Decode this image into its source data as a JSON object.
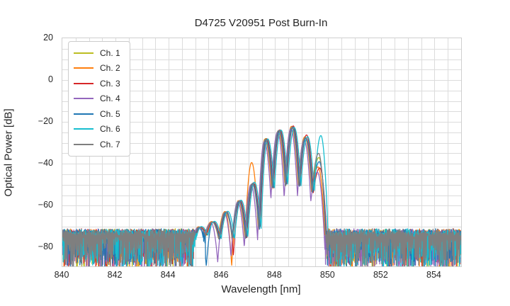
{
  "chart_data": {
    "type": "line",
    "title": "D4725 V20951 Post Burn-In",
    "xlabel": "Wavelength [nm]",
    "ylabel": "Optical Power [dB]",
    "xlim": [
      840,
      855
    ],
    "ylim": [
      -89,
      20
    ],
    "x_tick_values": [
      840,
      842,
      844,
      846,
      848,
      850,
      852,
      854
    ],
    "x_tick_labels": [
      "840",
      "842",
      "844",
      "846",
      "848",
      "850",
      "852",
      "854"
    ],
    "y_tick_values": [
      20,
      0,
      -20,
      -40,
      -60,
      -80
    ],
    "y_tick_labels": [
      "20",
      "0",
      "−20",
      "−40",
      "−60",
      "−80"
    ],
    "grid": {
      "x_step_nm": 0.5,
      "y_step_db": 5,
      "color": "#dcdcdc",
      "background": "#ffffff"
    },
    "legend": {
      "position": "upper left"
    },
    "noise_floor": {
      "top_db": -72.2,
      "fringe_db": 2.4,
      "spike_depth_db": 16,
      "left_region_end_nm": 845.38,
      "right_region_start_nm": 849.88,
      "sample_step_nm": 0.012
    },
    "lobe_centers_nm": [
      845.15,
      845.65,
      846.15,
      846.65,
      847.15,
      847.65,
      848.15,
      848.65,
      849.15,
      849.65
    ],
    "edge": {
      "left_offset_nm": 0.25,
      "left_null_db": -80,
      "right_offset_nm": 0.3,
      "right_null_db": -86
    },
    "series": [
      {
        "name": "Ch. 1",
        "color": "#bcbd22",
        "dx_nm": 0.0,
        "seed": 101,
        "lobe_peaks_db": [
          -70.4,
          -67.9,
          -63.2,
          -57.9,
          -49.6,
          -27.9,
          -24.2,
          -22.6,
          -27.5,
          -37.0
        ],
        "null_depths_db": [
          -74.5,
          -76.5,
          -76.0,
          -75.0,
          -71.0,
          -52.0,
          -50.5,
          -51.0,
          -54.0
        ]
      },
      {
        "name": "Ch. 2",
        "color": "#ff7f0e",
        "dx_nm": -0.03,
        "seed": 202,
        "lobe_peaks_db": [
          -70.1,
          -67.6,
          -62.8,
          -57.6,
          -39.4,
          -28.2,
          -24.3,
          -22.1,
          -27.1,
          -41.5
        ],
        "null_depths_db": [
          -73.5,
          -75.5,
          -89.0,
          -76.0,
          -72.0,
          -52.8,
          -50.2,
          -50.6,
          -53.5
        ]
      },
      {
        "name": "Ch. 3",
        "color": "#d62728",
        "dx_nm": 0.035,
        "seed": 303,
        "lobe_peaks_db": [
          -70.3,
          -67.7,
          -62.9,
          -57.5,
          -49.1,
          -28.0,
          -23.8,
          -21.9,
          -26.2,
          -42.0
        ],
        "null_depths_db": [
          -74.0,
          -76.0,
          -84.0,
          -75.5,
          -71.3,
          -52.2,
          -49.8,
          -51.3,
          -54.5
        ]
      },
      {
        "name": "Ch. 4",
        "color": "#9467bd",
        "dx_nm": -0.055,
        "seed": 404,
        "lobe_peaks_db": [
          -70.6,
          -68.2,
          -63.5,
          -58.2,
          -50.0,
          -29.3,
          -24.8,
          -23.2,
          -28.6,
          -44.0
        ],
        "null_depths_db": [
          -75.0,
          -87.0,
          -84.5,
          -80.0,
          -76.5,
          -57.0,
          -56.5,
          -55.5,
          -58.0
        ]
      },
      {
        "name": "Ch. 5",
        "color": "#1f77b4",
        "dx_nm": 0.015,
        "seed": 505,
        "lobe_peaks_db": [
          -70.2,
          -67.8,
          -63.1,
          -57.7,
          -49.3,
          -28.4,
          -24.1,
          -22.4,
          -27.6,
          -39.0
        ],
        "null_depths_db": [
          -89.0,
          -76.2,
          -75.8,
          -75.8,
          -71.6,
          -52.4,
          -50.6,
          -50.9,
          -54.1
        ]
      },
      {
        "name": "Ch. 6",
        "color": "#17becf",
        "dx_nm": 0.075,
        "seed": 606,
        "lobe_peaks_db": [
          -70.0,
          -67.5,
          -62.7,
          -57.4,
          -48.8,
          -28.1,
          -23.9,
          -22.7,
          -27.0,
          -26.5
        ],
        "null_depths_db": [
          -74.2,
          -75.8,
          -76.2,
          -75.2,
          -71.2,
          -52.6,
          -50.3,
          -50.7,
          -53.8
        ]
      },
      {
        "name": "Ch. 7",
        "color": "#7f7f7f",
        "dx_nm": -0.012,
        "seed": 707,
        "lobe_peaks_db": [
          -70.3,
          -67.8,
          -63.0,
          -57.8,
          -49.5,
          -28.3,
          -24.0,
          -22.5,
          -27.4,
          -35.0
        ],
        "null_depths_db": [
          -74.3,
          -76.3,
          -75.7,
          -75.6,
          -71.4,
          -52.3,
          -50.4,
          -51.1,
          -54.2
        ]
      }
    ]
  }
}
